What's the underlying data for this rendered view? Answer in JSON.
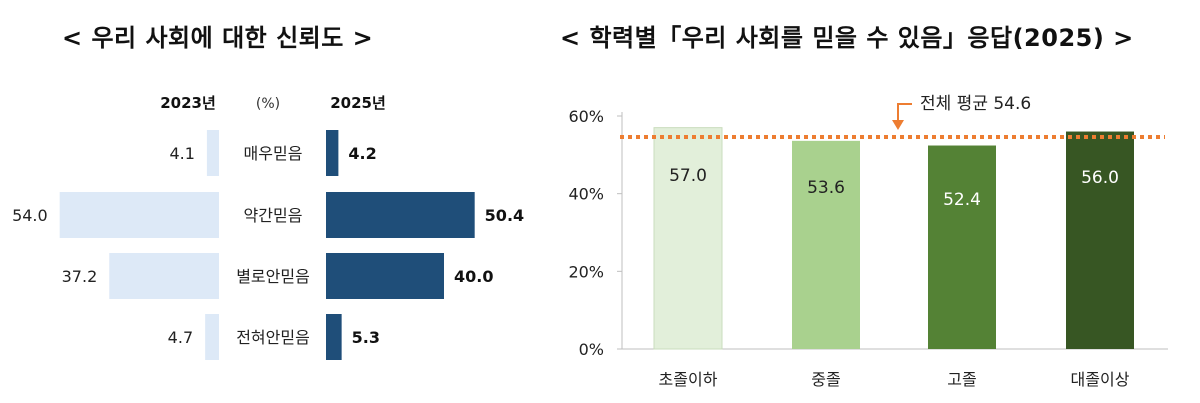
{
  "left": {
    "title": "< 우리 사회에 대한 신뢰도 >",
    "header_2023": "2023년",
    "header_unit": "(%)",
    "header_2025": "2025년"
  },
  "right": {
    "title": "< 학력별「우리 사회를 믿을 수 있음」응답(2025) >",
    "avg_label": "전체 평균 54.6"
  },
  "colors": {
    "old_bar": "#dde9f7",
    "new_bar": "#1f4e79",
    "edu_bars": [
      "#e2efda",
      "#a9d18e",
      "#548235",
      "#375623"
    ],
    "avg_line": "#ed7d31"
  },
  "chart_data": [
    {
      "type": "bar",
      "orientation": "horizontal-butterfly",
      "title": "< 우리 사회에 대한 신뢰도 >",
      "unit": "(%)",
      "categories": [
        "매우믿음",
        "약간믿음",
        "별로안믿음",
        "전혀안믿음"
      ],
      "series": [
        {
          "name": "2023년",
          "values": [
            4.1,
            54.0,
            37.2,
            4.7
          ]
        },
        {
          "name": "2025년",
          "values": [
            4.2,
            50.4,
            40.0,
            5.3
          ]
        }
      ]
    },
    {
      "type": "bar",
      "title": "< 학력별「우리 사회를 믿을 수 있음」응답(2025) >",
      "categories": [
        "초졸이하",
        "중졸",
        "고졸",
        "대졸이상"
      ],
      "values": [
        57.0,
        53.6,
        52.4,
        56.0
      ],
      "value_labels": [
        "57.0",
        "53.6",
        "52.4",
        "56.0"
      ],
      "y_ticks": [
        "0%",
        "20%",
        "40%",
        "60%"
      ],
      "ylim": [
        0,
        60
      ],
      "reference_line": {
        "label": "전체 평균 54.6",
        "value": 54.6
      }
    }
  ]
}
